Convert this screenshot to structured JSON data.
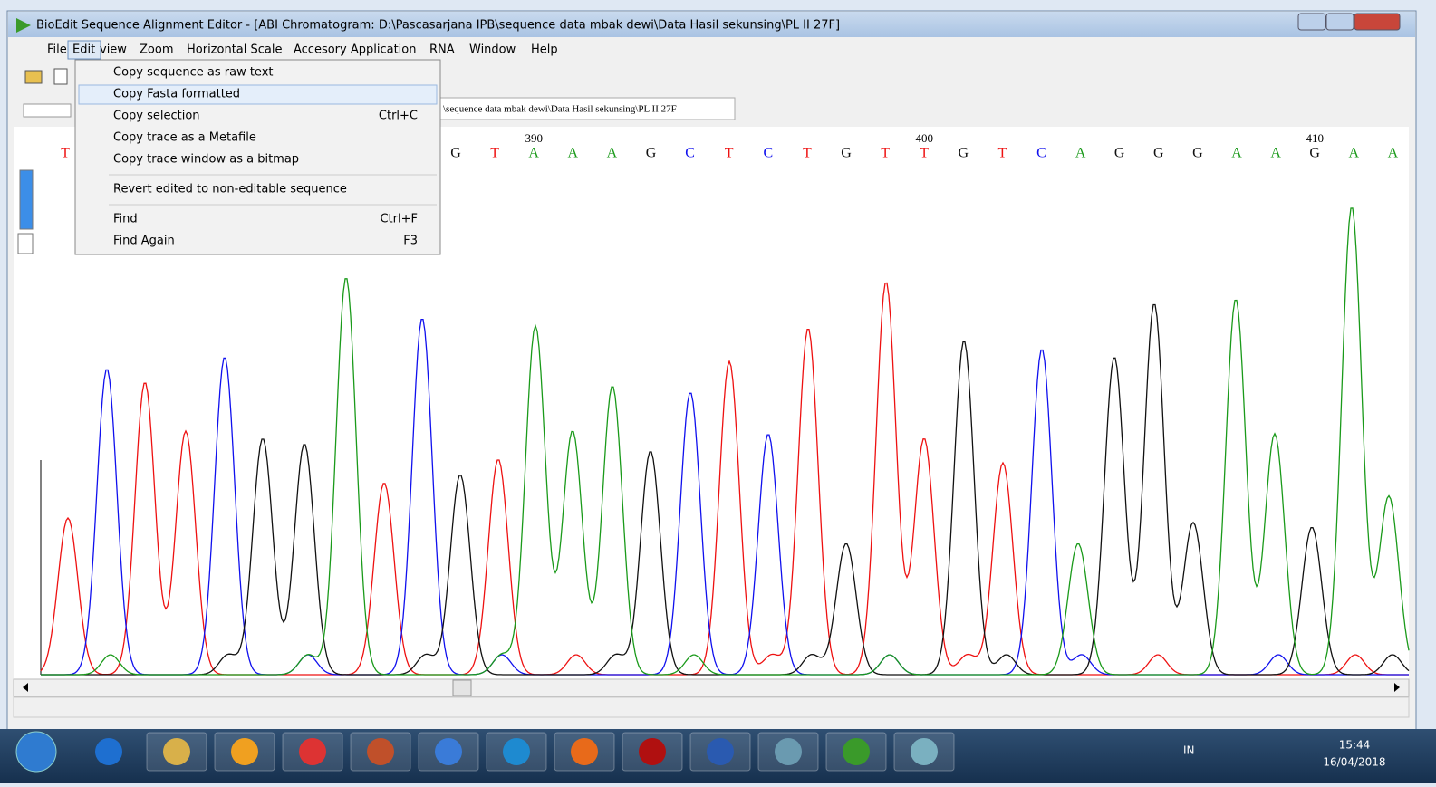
{
  "window": {
    "title": "BioEdit Sequence Alignment Editor - [ABI Chromatogram: D:\\Pascasarjana IPB\\sequence data mbak dewi\\Data Hasil sekunsing\\PL II 27F]",
    "menu": [
      "File",
      "Edit",
      "view",
      "Zoom",
      "Horizontal Scale",
      "Accesory Application",
      "RNA",
      "Window",
      "Help"
    ],
    "dropdown": [
      {
        "label": "Copy sequence as raw text"
      },
      {
        "label": "Copy Fasta formatted"
      },
      {
        "label": "Copy selection",
        "shortcut": "Ctrl+C"
      },
      {
        "label": "Copy trace as a Metafile"
      },
      {
        "label": "Copy trace window as a bitmap"
      },
      {
        "label": "Revert edited to non-editable sequence"
      },
      {
        "label": "Find",
        "shortcut": "Ctrl+F"
      },
      {
        "label": "Find Again",
        "shortcut": "F3"
      }
    ],
    "path": "\\sequence data mbak dewi\\Data Hasil sekunsing\\PL II 27F"
  },
  "chromatogram": {
    "bases": [
      "T",
      "G",
      "T",
      "A",
      "A",
      "A",
      "G",
      "C",
      "T",
      "C",
      "T",
      "G",
      "T",
      "T",
      "G",
      "T",
      "C",
      "A",
      "G",
      "G",
      "G",
      "A",
      "A",
      "G",
      "A",
      "A"
    ],
    "base_colors": {
      "A": "#1a9a1a",
      "C": "#1010ee",
      "G": "#111111",
      "T": "#ee1111"
    },
    "positions": [
      390,
      400,
      410
    ]
  },
  "taskbar": {
    "language": "IN",
    "time": "15:44",
    "date": "16/04/2018"
  }
}
